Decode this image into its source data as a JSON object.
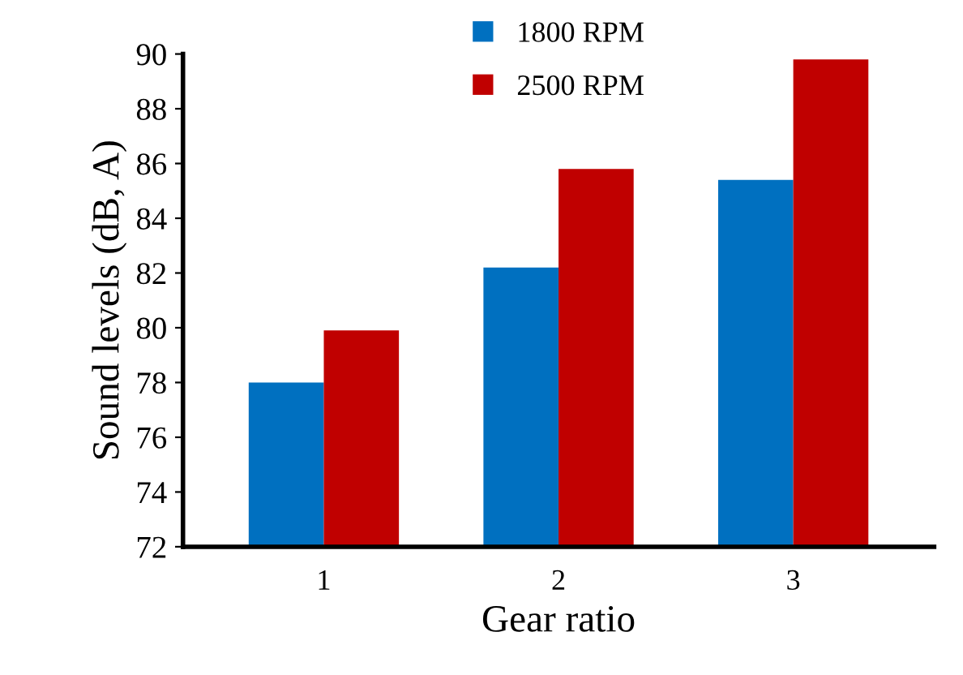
{
  "chart_data": {
    "type": "bar",
    "xlabel": "Gear ratio",
    "ylabel": "Sound levels (dB, A)",
    "categories": [
      "1",
      "2",
      "3"
    ],
    "series": [
      {
        "name": "1800 RPM",
        "color": "#0070c0",
        "values": [
          78.0,
          82.2,
          85.4
        ]
      },
      {
        "name": "2500 RPM",
        "color": "#c00000",
        "values": [
          79.9,
          85.8,
          89.8
        ]
      }
    ],
    "ylim": [
      72,
      90
    ],
    "yticks": [
      72,
      74,
      76,
      78,
      80,
      82,
      84,
      86,
      88,
      90
    ],
    "legend": "top"
  }
}
